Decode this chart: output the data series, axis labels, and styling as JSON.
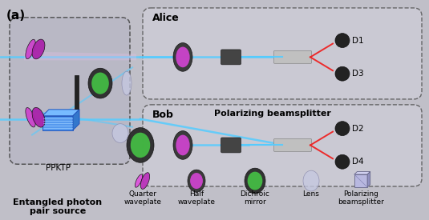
{
  "title_label": "(a)",
  "bg_color": "#c0bfc8",
  "fig_width": 5.35,
  "fig_height": 2.75,
  "dpi": 100,
  "alice_label": "Alice",
  "bob_label": "Bob",
  "ppktp_label": "PPKTP",
  "source_label": "Entangled photon\npair source",
  "pbs_label": "Polarizing beamsplitter",
  "d1_label": "D1",
  "d2_label": "D2",
  "d3_label": "D3",
  "d4_label": "D4",
  "legend_labels": [
    "Quarter\nwaveplate",
    "Half\nwaveplate",
    "Dichroic\nmirror",
    "Lens",
    "Polarizing\nbeamsplitter"
  ],
  "beam_color_blue": "#55ccff",
  "beam_color_red": "#ee2222",
  "source_bg": "#bbbac8",
  "alice_bg": "#d0cfd8",
  "bob_bg": "#d0cfd8"
}
